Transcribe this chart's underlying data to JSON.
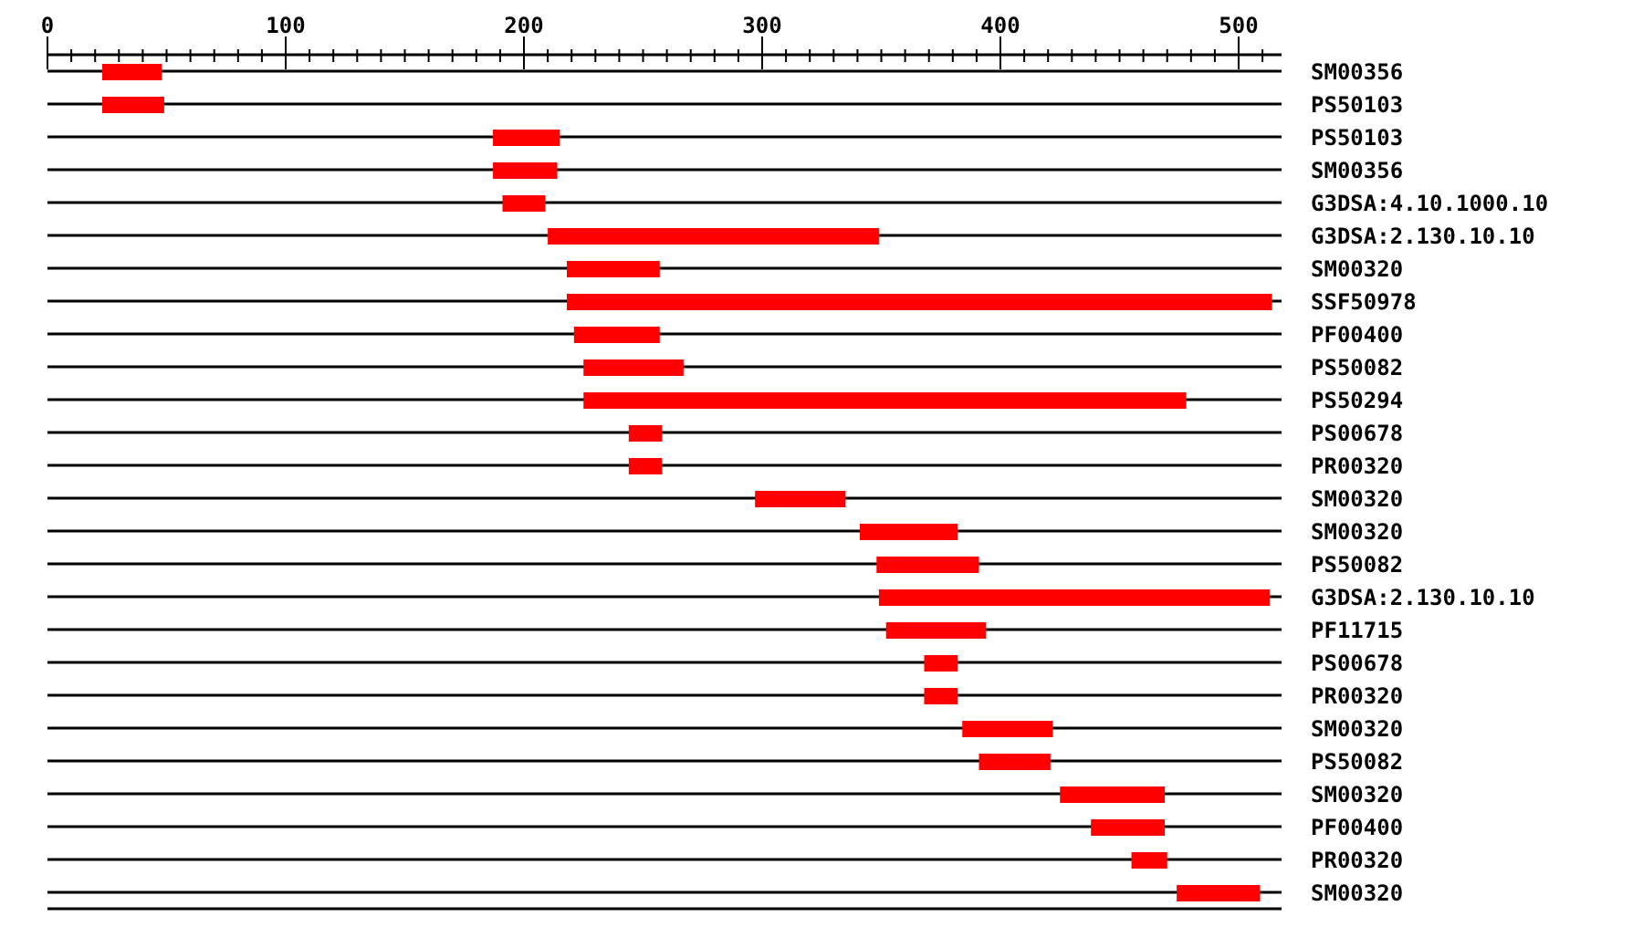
{
  "chart_data": {
    "type": "bar",
    "orientation": "horizontal",
    "color": "#ff0000",
    "grid": "y",
    "categories": [
      "SM00356",
      "PS50103",
      "PS50103",
      "SM00356",
      "G3DSA:4.10.1000.10",
      "G3DSA:2.130.10.10",
      "SM00320",
      "SSF50978",
      "PF00400",
      "PS50082",
      "PS50294",
      "PS00678",
      "PR00320",
      "SM00320",
      "SM00320",
      "PS50082",
      "G3DSA:2.130.10.10",
      "PF11715",
      "PS00678",
      "PR00320",
      "SM00320",
      "PS50082",
      "SM00320",
      "PF00400",
      "PR00320",
      "SM00320"
    ],
    "base": [
      23,
      23,
      187,
      187,
      191,
      210,
      218,
      218,
      221,
      225,
      225,
      244,
      244,
      297,
      341,
      348,
      349,
      352,
      368,
      368,
      384,
      391,
      425,
      438,
      455,
      474
    ],
    "values": [
      25,
      26,
      28,
      27,
      18,
      139,
      39,
      296,
      36,
      42,
      253,
      14,
      14,
      38,
      41,
      43,
      164,
      42,
      14,
      14,
      38,
      30,
      44,
      31,
      15,
      35
    ],
    "xlim": [
      0,
      518
    ],
    "xticks": [
      0,
      {
        "value": 10,
        "label": null
      },
      {
        "value": 20,
        "label": null
      },
      {
        "value": 30,
        "label": null
      },
      {
        "value": 40,
        "label": null
      },
      {
        "value": 50,
        "label": null
      },
      {
        "value": 60,
        "label": null
      },
      {
        "value": 70,
        "label": null
      },
      {
        "value": 80,
        "label": null
      },
      {
        "value": 90,
        "label": null
      },
      100,
      {
        "value": 110,
        "label": null
      },
      {
        "value": 120,
        "label": null
      },
      {
        "value": 130,
        "label": null
      },
      {
        "value": 140,
        "label": null
      },
      {
        "value": 150,
        "label": null
      },
      {
        "value": 160,
        "label": null
      },
      {
        "value": 170,
        "label": null
      },
      {
        "value": 180,
        "label": null
      },
      {
        "value": 190,
        "label": null
      },
      200,
      {
        "value": 210,
        "label": null
      },
      {
        "value": 220,
        "label": null
      },
      {
        "value": 230,
        "label": null
      },
      {
        "value": 240,
        "label": null
      },
      {
        "value": 250,
        "label": null
      },
      {
        "value": 260,
        "label": null
      },
      {
        "value": 270,
        "label": null
      },
      {
        "value": 280,
        "label": null
      },
      {
        "value": 290,
        "label": null
      },
      300,
      {
        "value": 310,
        "label": null
      },
      {
        "value": 320,
        "label": null
      },
      {
        "value": 330,
        "label": null
      },
      {
        "value": 340,
        "label": null
      },
      {
        "value": 350,
        "label": null
      },
      {
        "value": 360,
        "label": null
      },
      {
        "value": 370,
        "label": null
      },
      {
        "value": 380,
        "label": null
      },
      {
        "value": 390,
        "label": null
      },
      400,
      {
        "value": 410,
        "label": null
      },
      {
        "value": 420,
        "label": null
      },
      {
        "value": 430,
        "label": null
      },
      {
        "value": 440,
        "label": null
      },
      {
        "value": 450,
        "label": null
      },
      {
        "value": 460,
        "label": null
      },
      {
        "value": 470,
        "label": null
      },
      {
        "value": 480,
        "label": null
      },
      {
        "value": 490,
        "label": null
      },
      500,
      {
        "value": 510,
        "label": null
      }
    ]
  }
}
